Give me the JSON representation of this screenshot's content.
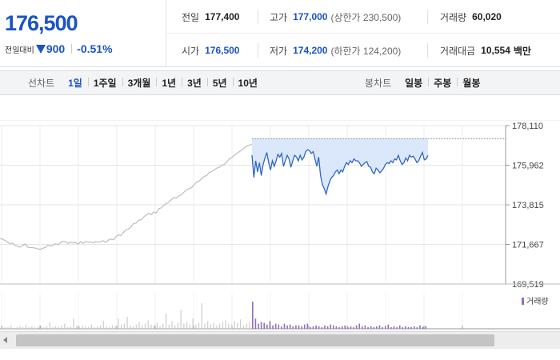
{
  "quote": {
    "price": "176,500",
    "change_label": "전일대비",
    "change_value": "900",
    "change_pct": "-0.51%",
    "direction_icon": "down-triangle-icon",
    "stats": {
      "prev_close": {
        "label": "전일",
        "value": "177,400"
      },
      "high": {
        "label": "고가",
        "value": "177,000",
        "sub": "(상한가 230,500)"
      },
      "volume": {
        "label": "거래량",
        "value": "60,020"
      },
      "open": {
        "label": "시가",
        "value": "176,500"
      },
      "low": {
        "label": "저가",
        "value": "174,200",
        "sub": "(하한가 124,200)"
      },
      "turnover": {
        "label": "거래대금",
        "value": "10,554",
        "unit": "백만"
      }
    }
  },
  "toolbar": {
    "line_label": "선차트",
    "line_periods": [
      "1일",
      "1주일",
      "3개월",
      "1년",
      "3년",
      "5년",
      "10년"
    ],
    "active_period": "1일",
    "candle_label": "봉차트",
    "candle_periods": [
      "일봉",
      "주봉",
      "월봉"
    ]
  },
  "colors": {
    "accent": "#1a54c4",
    "prev_line": "#bdbdbd",
    "today_line": "#2f66c8",
    "today_fill": "#dbe8fb",
    "volume_prev": "#cccccc",
    "volume_today": "#8e6fc1"
  },
  "chart_data": {
    "type": "line",
    "y_ticks": [
      "178,110",
      "175,962",
      "173,815",
      "171,667",
      "169,519"
    ],
    "ylim": [
      169519,
      178110
    ],
    "reference_line": 177400,
    "volume_legend": "거래량",
    "series": [
      {
        "values": [
          171990,
          171950,
          171880,
          171780,
          171700,
          171740,
          171600,
          171560,
          171520,
          171610,
          171690,
          171520,
          171500,
          171490,
          171470,
          171420,
          171400,
          171460,
          171500,
          171620,
          171580,
          171610,
          171700,
          171650,
          171760,
          171840,
          171800,
          171720,
          171790,
          171740,
          171770,
          171680,
          171820,
          171720,
          171830,
          171790,
          171800,
          171750,
          171820,
          171780,
          171830,
          171860,
          171780,
          171900,
          171960,
          171920,
          172080,
          172180,
          172150,
          172320,
          172450,
          172500,
          172620,
          172800,
          172820,
          172980,
          173000,
          173150,
          173260,
          173360,
          173280,
          173420,
          173380,
          173600,
          173650,
          173800,
          173880,
          173950,
          174100,
          174210,
          174180,
          174300,
          174350,
          174500,
          174620,
          174700,
          174740,
          174900,
          175050,
          175100,
          175230,
          175350,
          175400,
          175560,
          175620,
          175700,
          175800,
          175850,
          175960,
          176000,
          176150,
          176300,
          176380,
          176500,
          176600,
          176700,
          176800,
          176900,
          177000,
          177050,
          177100
        ]
      },
      {
        "values": [
          176500,
          175300,
          176200,
          175600,
          176100,
          175400,
          176000,
          176350,
          176650,
          176100,
          175700,
          176200,
          175900,
          176200,
          176550,
          176400,
          176600,
          175900,
          176200,
          176500,
          176300,
          175850,
          176200,
          176500,
          176400,
          176200,
          176500,
          176250,
          176400,
          176700,
          176800,
          176750,
          176600,
          176700,
          176300,
          175900,
          176400,
          175400,
          174900,
          174700,
          174400,
          174800,
          175100,
          175300,
          175400,
          175600,
          175700,
          175500,
          175700,
          175600,
          175900,
          176100,
          176000,
          176200,
          176100,
          176300,
          176200,
          176200,
          176100,
          175900,
          176000,
          176100,
          176150,
          175900,
          175850,
          175600,
          175500,
          175800,
          175700,
          175550,
          175650,
          175800,
          176000,
          176100,
          176050,
          176200,
          176100,
          176300,
          176250,
          176500,
          176200,
          176000,
          176100,
          176350,
          176200,
          176500,
          176400,
          176450,
          176300,
          176100,
          176200,
          176450,
          176650,
          176250,
          176300,
          176500
        ]
      }
    ],
    "volume": {
      "prev": [
        3,
        2,
        2,
        4,
        1,
        2,
        3,
        2,
        5,
        2,
        3,
        2,
        2,
        4,
        2,
        3,
        8,
        2,
        3,
        2,
        4,
        6,
        2,
        3,
        12,
        3,
        2,
        4,
        3,
        2,
        5,
        2,
        3,
        4,
        9,
        3,
        2,
        4,
        3,
        12,
        5,
        6,
        14,
        4,
        3,
        5,
        8,
        4,
        6,
        10,
        5,
        4,
        7,
        3,
        6,
        18,
        5,
        9,
        4,
        7,
        22,
        6,
        8,
        5,
        12,
        5,
        7,
        30,
        6,
        9,
        5,
        7,
        4,
        6,
        8,
        10,
        6,
        5,
        9,
        7,
        11,
        4,
        6,
        8
      ],
      "today": [
        32,
        12,
        6,
        8,
        7,
        5,
        9,
        4,
        6,
        5,
        3,
        6,
        4,
        5,
        3,
        4,
        4,
        3,
        5,
        6,
        2,
        3,
        4,
        3,
        2,
        4,
        3,
        5,
        4,
        3,
        2,
        3,
        4,
        2,
        3,
        2,
        4,
        6,
        3,
        4,
        2,
        3,
        2,
        3,
        4,
        2,
        3,
        5,
        2,
        3,
        2,
        4,
        2,
        3,
        2,
        2,
        3,
        2,
        4,
        2,
        3
      ]
    }
  }
}
